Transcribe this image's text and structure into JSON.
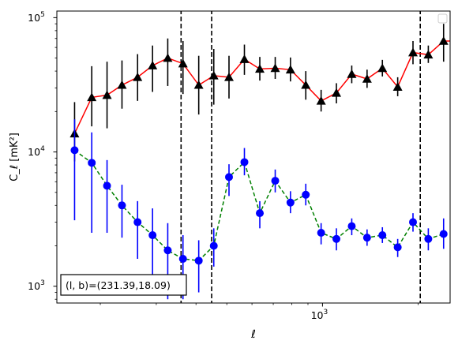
{
  "chart_data": {
    "type": "scatter",
    "xscale": "log",
    "yscale": "log",
    "xlim": [
      146,
      2520
    ],
    "ylim": [
      750,
      112000
    ],
    "xlabel": "ℓ",
    "ylabel": "C_ℓ  [mK²]",
    "xticks": [
      {
        "value": 1000,
        "base": "10",
        "exp": "3"
      }
    ],
    "yticks": [
      {
        "value": 1000,
        "base": "10",
        "exp": "3"
      },
      {
        "value": 10000,
        "base": "10",
        "exp": "4"
      },
      {
        "value": 100000,
        "base": "10",
        "exp": "5"
      }
    ],
    "annotation": "(l, b)=(231.39,18.09)",
    "vlines": [
      359,
      448,
      2030
    ],
    "legend": "top-right, empty",
    "series": [
      {
        "marker": "triangle",
        "line_style": "solid",
        "line_color": "#ff0000",
        "marker_color": "#000000",
        "errorbar_color": "#000000",
        "x": [
          166,
          188,
          210,
          234,
          262,
          292,
          326,
          364,
          408,
          455,
          508,
          568,
          635,
          710,
          793,
          886,
          990,
          1106,
          1236,
          1381,
          1543,
          1724,
          1926,
          2152,
          2404,
          2686
        ],
        "y": [
          13700,
          25500,
          26500,
          31500,
          36000,
          44000,
          50000,
          45500,
          31500,
          37000,
          36000,
          49000,
          41500,
          42000,
          41000,
          31500,
          24000,
          27500,
          38000,
          35000,
          42000,
          30500,
          55000,
          53000,
          67000,
          67000
        ],
        "y_low": [
          8500,
          15500,
          15000,
          21000,
          24000,
          28000,
          31000,
          27000,
          19000,
          22500,
          25000,
          37500,
          34000,
          35000,
          33500,
          24500,
          20000,
          23000,
          32500,
          30000,
          36500,
          26000,
          45000,
          46000,
          47000,
          47000
        ],
        "y_high": [
          23500,
          43500,
          47000,
          48000,
          53500,
          62000,
          70000,
          67000,
          52000,
          58500,
          52000,
          63000,
          51000,
          51000,
          50500,
          40000,
          29000,
          32500,
          44000,
          41000,
          48500,
          36000,
          67000,
          62000,
          90000,
          90000
        ]
      },
      {
        "marker": "circle",
        "line_style": "dashed",
        "line_color": "#008000",
        "marker_color": "#0000ff",
        "errorbar_color": "#0000ff",
        "x": [
          166,
          188,
          210,
          234,
          262,
          292,
          326,
          364,
          408,
          455,
          508,
          568,
          635,
          710,
          793,
          886,
          990,
          1106,
          1236,
          1381,
          1543,
          1724,
          1926,
          2152,
          2404
        ],
        "y": [
          10300,
          8300,
          5600,
          4000,
          3000,
          2400,
          1850,
          1600,
          1550,
          2000,
          6500,
          8400,
          3500,
          6100,
          4200,
          4800,
          2500,
          2250,
          2800,
          2300,
          2400,
          1950,
          3000,
          2250,
          2450
        ],
        "y_low": [
          3100,
          2500,
          2500,
          2300,
          1600,
          860,
          800,
          800,
          900,
          1400,
          4700,
          6700,
          2700,
          5000,
          3500,
          4000,
          2050,
          1850,
          2400,
          2000,
          2100,
          1650,
          2550,
          1850,
          1900
        ],
        "y_high": [
          17500,
          14000,
          8700,
          5700,
          4300,
          3800,
          2950,
          2400,
          2200,
          2700,
          8100,
          10700,
          4300,
          7400,
          5100,
          5800,
          2950,
          2700,
          3200,
          2650,
          2750,
          2250,
          3500,
          2700,
          3200
        ]
      }
    ]
  }
}
